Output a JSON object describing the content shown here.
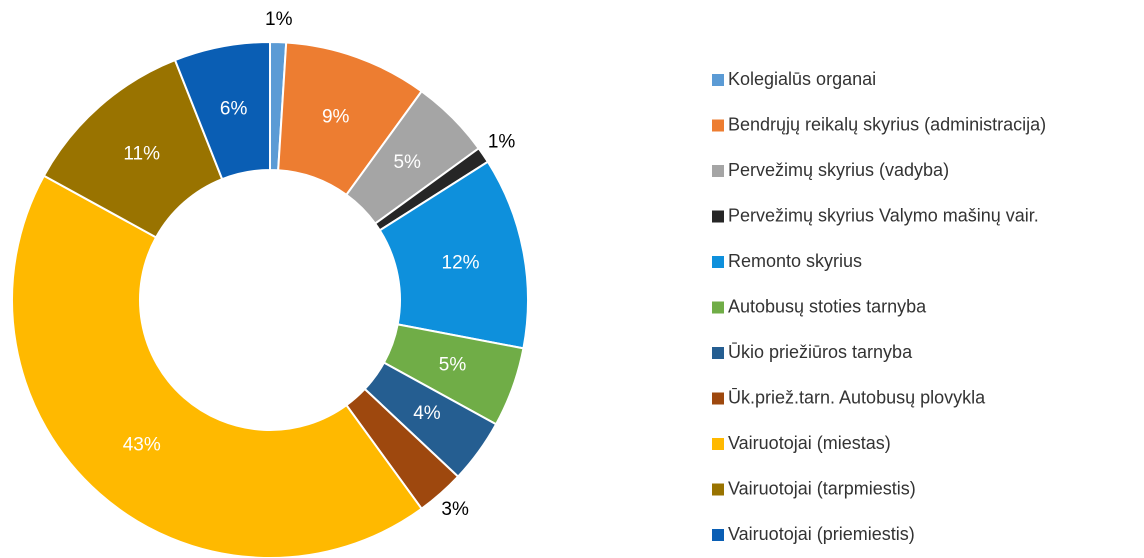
{
  "chart_data": {
    "type": "donut",
    "categories": [
      "Kolegialūs organai",
      "Bendrųjų reikalų skyrius  (administracija)",
      "Pervežimų skyrius (vadyba)",
      "Pervežimų skyrius Valymo mašinų vair.",
      "Remonto skyrius",
      "Autobusų stoties tarnyba",
      "Ūkio priežiūros tarnyba",
      "Ūk.priež.tarn. Autobusų plovykla",
      "Vairuotojai (miestas)",
      "Vairuotojai (tarpmiestis)",
      "Vairuotojai (priemiestis)"
    ],
    "values": [
      1,
      9,
      5,
      1,
      12,
      5,
      4,
      3,
      43,
      11,
      6
    ],
    "value_labels": [
      "1%",
      "9%",
      "5%",
      "1%",
      "12%",
      "5%",
      "4%",
      "3%",
      "43%",
      "11%",
      "6%"
    ],
    "colors": [
      "#5b9bd5",
      "#ed7d31",
      "#a5a5a5",
      "#262626",
      "#0e90dc",
      "#70ad47",
      "#255e91",
      "#9e480e",
      "#ffb900",
      "#997300",
      "#0a5eb4"
    ],
    "legend": "right"
  }
}
